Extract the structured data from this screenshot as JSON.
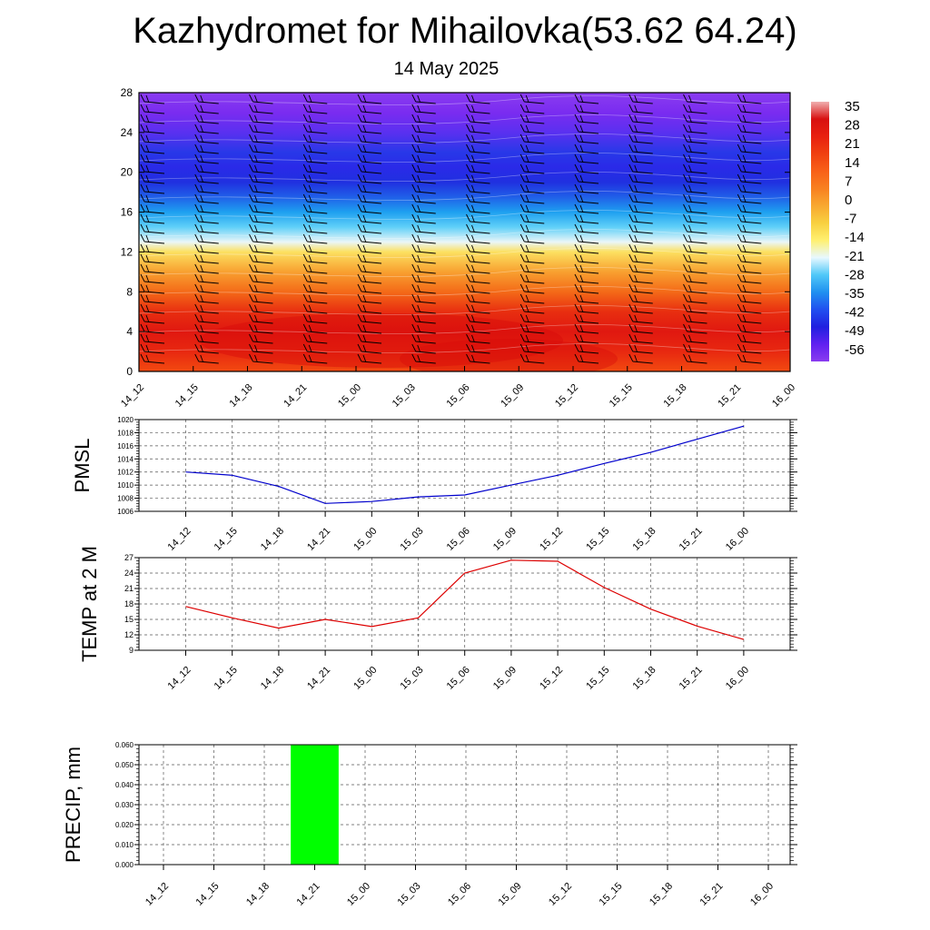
{
  "title": "Kazhydromet for Mihailovka(53.62 64.24)",
  "subtitle": "14 May 2025",
  "chart_data": [
    {
      "type": "heatmap",
      "description_panel": "temperature-height cross-section with wind barbs",
      "x_ticks": [
        "14_12",
        "14_15",
        "14_18",
        "14_21",
        "15_00",
        "15_03",
        "15_06",
        "15_09",
        "15_12",
        "15_15",
        "15_18",
        "15_21",
        "16_00"
      ],
      "y_ticks": [
        "0",
        "4",
        "8",
        "12",
        "16",
        "20",
        "24",
        "28"
      ],
      "ylim": [
        0,
        28
      ],
      "colorbar_labels": [
        "35",
        "28",
        "21",
        "14",
        "7",
        "0",
        "-7",
        "-14",
        "-21",
        "-28",
        "-35",
        "-42",
        "-49",
        "-56"
      ],
      "colorbar_colors": [
        "#f0b0b0",
        "#d81010",
        "#e82010",
        "#f04010",
        "#f86018",
        "#f88020",
        "#f8a830",
        "#f8d040",
        "#fff070",
        "#e8f8ff",
        "#50c8f8",
        "#2090f0",
        "#2050f0",
        "#2020e0",
        "#6020f0",
        "#8a3cf0"
      ],
      "layers": [
        {
          "height": 0,
          "color": "#f24a10"
        },
        {
          "height": 2,
          "color": "#e82810"
        },
        {
          "height": 4,
          "color": "#e01810"
        },
        {
          "height": 6,
          "color": "#e82e10"
        },
        {
          "height": 8,
          "color": "#f46a18"
        },
        {
          "height": 10,
          "color": "#f8a030"
        },
        {
          "height": 12,
          "color": "#fce060"
        },
        {
          "height": 13,
          "color": "#eaf6f8"
        },
        {
          "height": 14.5,
          "color": "#60d0f8"
        },
        {
          "height": 16,
          "color": "#1ea0f0"
        },
        {
          "height": 17.5,
          "color": "#2060e8"
        },
        {
          "height": 19,
          "color": "#2030e0"
        },
        {
          "height": 20.5,
          "color": "#2a2ae8"
        },
        {
          "height": 22,
          "color": "#2838e8"
        },
        {
          "height": 24,
          "color": "#5a30f0"
        },
        {
          "height": 26,
          "color": "#7a2cf0"
        },
        {
          "height": 28,
          "color": "#8a3cf0"
        }
      ]
    },
    {
      "type": "line",
      "ylabel": "PMSL",
      "x": [
        "14_12",
        "14_15",
        "14_18",
        "14_21",
        "15_00",
        "15_03",
        "15_06",
        "15_09",
        "15_12",
        "15_15",
        "15_18",
        "15_21",
        "16_00"
      ],
      "series": [
        {
          "values": [
            1012.0,
            1011.5,
            1009.8,
            1007.2,
            1007.5,
            1008.2,
            1008.5,
            1010.0,
            1011.5,
            1013.3,
            1015.0,
            1017.0,
            1019.0
          ]
        }
      ],
      "ylim": [
        1006,
        1020
      ],
      "y_ticks": [
        "1006",
        "1008",
        "1010",
        "1012",
        "1014",
        "1016",
        "1018",
        "1020"
      ],
      "line_color": "#0000cc"
    },
    {
      "type": "line",
      "ylabel": "TEMP at 2 M",
      "x": [
        "14_12",
        "14_15",
        "14_18",
        "14_21",
        "15_00",
        "15_03",
        "15_06",
        "15_09",
        "15_12",
        "15_15",
        "15_18",
        "15_21",
        "16_00"
      ],
      "series": [
        {
          "values": [
            17.5,
            15.3,
            13.3,
            15.0,
            13.6,
            15.3,
            24.0,
            26.5,
            26.3,
            21.2,
            17.0,
            13.7,
            11.1
          ]
        }
      ],
      "ylim": [
        9,
        27
      ],
      "y_ticks": [
        "9",
        "12",
        "15",
        "18",
        "21",
        "24",
        "27"
      ],
      "line_color": "#dd0000"
    },
    {
      "type": "bar",
      "ylabel": "PRECIP, mm",
      "categories": [
        "14_12",
        "14_15",
        "14_18",
        "14_21",
        "15_00",
        "15_03",
        "15_06",
        "15_09",
        "15_12",
        "15_15",
        "15_18",
        "15_21",
        "16_00"
      ],
      "values": [
        0,
        0,
        0,
        0.06,
        0,
        0,
        0,
        0,
        0,
        0,
        0,
        0,
        0
      ],
      "ylim": [
        0,
        0.06
      ],
      "y_ticks": [
        "0.000",
        "0.010",
        "0.020",
        "0.030",
        "0.040",
        "0.050",
        "0.060"
      ],
      "bar_color": "#00ff00"
    }
  ]
}
